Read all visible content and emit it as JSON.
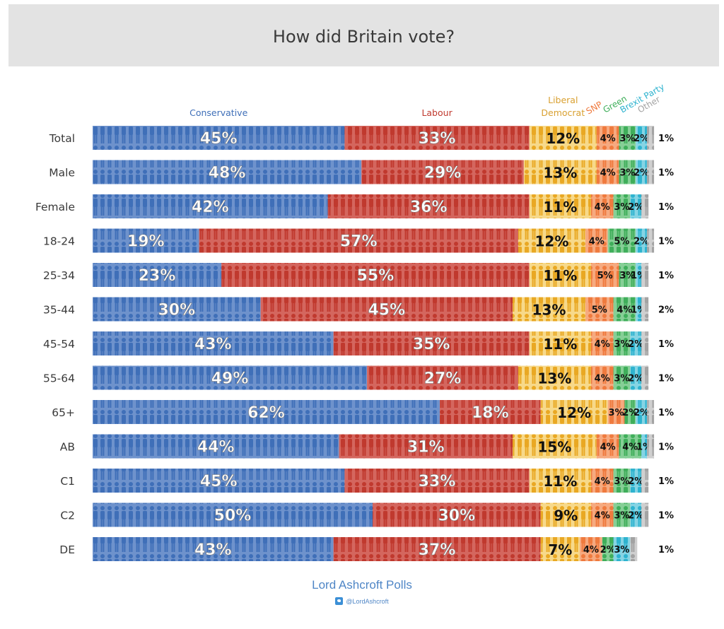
{
  "title": "How did Britain vote?",
  "footer": {
    "brand": "Lord Ashcroft Polls",
    "handle": "@LordAshcroft"
  },
  "chart_data": {
    "type": "bar",
    "orientation": "horizontal",
    "stacked": true,
    "title": "How did Britain vote?",
    "categories": [
      "Total",
      "Male",
      "Female",
      "18-24",
      "25-34",
      "35-44",
      "45-54",
      "55-64",
      "65+",
      "AB",
      "C1",
      "C2",
      "DE"
    ],
    "series": [
      {
        "name": "Conservative",
        "header": [
          "Conservative"
        ],
        "color": "#3f6fb8",
        "light": "#6e92cc",
        "values": [
          45,
          48,
          42,
          19,
          23,
          30,
          43,
          49,
          62,
          44,
          45,
          50,
          43
        ],
        "labels": [
          "45%",
          "48%",
          "42%",
          "19%",
          "23%",
          "30%",
          "43%",
          "49%",
          "62%",
          "44%",
          "45%",
          "50%",
          "43%"
        ]
      },
      {
        "name": "Labour",
        "header": [
          "Labour"
        ],
        "color": "#c0392e",
        "light": "#d4665e",
        "values": [
          33,
          29,
          36,
          57,
          55,
          45,
          35,
          27,
          18,
          31,
          33,
          30,
          37
        ],
        "labels": [
          "33%",
          "29%",
          "36%",
          "57%",
          "55%",
          "45%",
          "35%",
          "27%",
          "18%",
          "31%",
          "33%",
          "30%",
          "37%"
        ]
      },
      {
        "name": "Liberal Democrat",
        "header": [
          "Liberal",
          "Democrat"
        ],
        "color": "#e9a823",
        "light": "#f7d98a",
        "values": [
          12,
          13,
          11,
          12,
          11,
          13,
          11,
          13,
          12,
          15,
          11,
          9,
          7
        ],
        "labels": [
          "12%",
          "13%",
          "11%",
          "12%",
          "11%",
          "13%",
          "11%",
          "13%",
          "12%",
          "15%",
          "11%",
          "9%",
          "7%"
        ]
      },
      {
        "name": "SNP",
        "header": [
          "SNP"
        ],
        "color": "#ef7a3e",
        "light": "#f6aa80",
        "values": [
          4,
          4,
          4,
          4,
          5,
          5,
          4,
          4,
          3,
          4,
          4,
          4,
          4
        ],
        "labels": [
          "4%",
          "4%",
          "4%",
          "4%",
          "5%",
          "5%",
          "4%",
          "4%",
          "3%",
          "4%",
          "4%",
          "4%",
          "4%"
        ]
      },
      {
        "name": "Green",
        "header": [
          "Green"
        ],
        "color": "#3fae5a",
        "light": "#86cf96",
        "values": [
          3,
          3,
          3,
          5,
          3,
          4,
          3,
          3,
          2,
          4,
          3,
          3,
          2
        ],
        "labels": [
          "3%",
          "3%",
          "3%",
          "5%",
          "3%",
          "4%",
          "3%",
          "3%",
          "2%",
          "4%",
          "3%",
          "3%",
          "2%"
        ]
      },
      {
        "name": "Brexit Party",
        "header": [
          "Brexit Party"
        ],
        "color": "#2eb3cf",
        "light": "#86d4e4",
        "values": [
          2,
          2,
          2,
          2,
          1,
          1,
          2,
          2,
          2,
          1,
          2,
          2,
          3
        ],
        "labels": [
          "2%",
          "2%",
          "2%",
          "2%",
          "1%",
          "1%",
          "2%",
          "2%",
          "2%",
          "1%",
          "2%",
          "2%",
          "3%"
        ]
      },
      {
        "name": "Other",
        "header": [
          "Other"
        ],
        "color": "#a3a3a3",
        "light": "#cfcfcf",
        "values": [
          1,
          1,
          1,
          1,
          1,
          2,
          1,
          1,
          1,
          1,
          1,
          1,
          1
        ],
        "labels": [
          "1%",
          "1%",
          "1%",
          "1%",
          "1%",
          "2%",
          "1%",
          "1%",
          "1%",
          "1%",
          "1%",
          "1%",
          "1%"
        ]
      }
    ],
    "xlim": [
      0,
      100
    ],
    "legend": "top, series names above bars",
    "grid": false
  }
}
